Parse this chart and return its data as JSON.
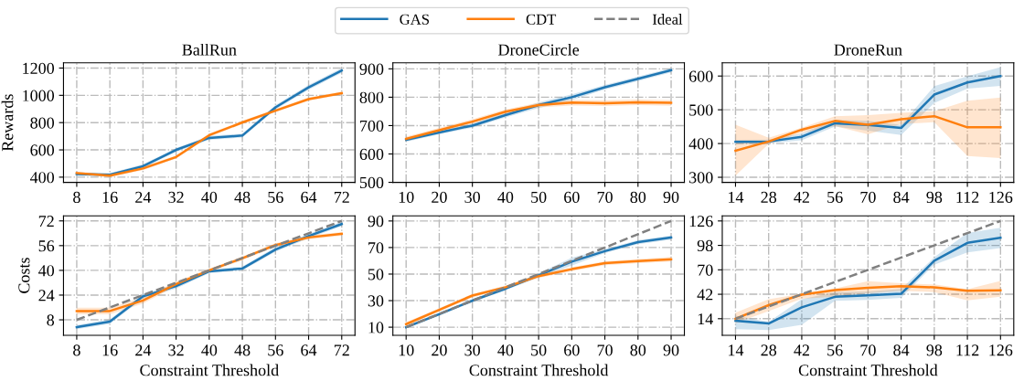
{
  "chart_data": [
    {
      "type": "line",
      "title": "BallRun",
      "ylabel": "Rewards",
      "x": [
        8,
        16,
        24,
        32,
        40,
        48,
        56,
        64,
        72
      ],
      "xlim": [
        4.8,
        75.2
      ],
      "xticks": [
        8,
        16,
        24,
        32,
        40,
        48,
        56,
        64,
        72
      ],
      "ylim": [
        362,
        1238
      ],
      "yticks": [
        400,
        600,
        800,
        1000,
        1200
      ],
      "grid": true,
      "legend": "top",
      "line_style": "solid",
      "series": [
        {
          "name": "GAS",
          "color": "#1f77b4",
          "values": [
            422,
            418,
            480,
            600,
            688,
            705,
            912,
            1058,
            1182
          ],
          "lower": [
            410,
            406,
            466,
            586,
            674,
            690,
            896,
            1040,
            1164
          ],
          "upper": [
            434,
            430,
            494,
            614,
            702,
            720,
            928,
            1076,
            1200
          ]
        },
        {
          "name": "CDT",
          "color": "#ff7f0e",
          "values": [
            430,
            411,
            464,
            548,
            708,
            801,
            888,
            972,
            1016
          ],
          "lower": [
            420,
            401,
            452,
            536,
            696,
            789,
            876,
            960,
            1004
          ],
          "upper": [
            440,
            421,
            476,
            560,
            720,
            813,
            900,
            984,
            1028
          ]
        }
      ]
    },
    {
      "type": "line",
      "title": "DroneCircle",
      "x": [
        10,
        20,
        30,
        40,
        50,
        60,
        70,
        80,
        90
      ],
      "xlim": [
        6,
        94
      ],
      "xticks": [
        10,
        20,
        30,
        40,
        50,
        60,
        70,
        80,
        90
      ],
      "ylim": [
        500,
        921
      ],
      "yticks": [
        500,
        600,
        700,
        800,
        900
      ],
      "grid": true,
      "legend": "top",
      "line_style": "solid",
      "series": [
        {
          "name": "GAS",
          "color": "#1f77b4",
          "values": [
            650,
            676,
            700,
            737,
            772,
            800,
            835,
            865,
            895
          ],
          "lower": [
            643,
            669,
            693,
            729,
            762,
            790,
            827,
            857,
            887
          ],
          "upper": [
            657,
            683,
            707,
            745,
            782,
            810,
            843,
            873,
            903
          ]
        },
        {
          "name": "CDT",
          "color": "#ff7f0e",
          "values": [
            653,
            684,
            714,
            749,
            772,
            781,
            779,
            782,
            780
          ],
          "lower": [
            645,
            676,
            706,
            741,
            764,
            771,
            769,
            772,
            770
          ],
          "upper": [
            661,
            692,
            722,
            757,
            780,
            791,
            789,
            792,
            790
          ]
        }
      ]
    },
    {
      "type": "line",
      "title": "DroneRun",
      "x": [
        14,
        28,
        42,
        56,
        70,
        84,
        98,
        112,
        126
      ],
      "xlim": [
        8.4,
        131.6
      ],
      "xticks": [
        14,
        28,
        42,
        56,
        70,
        84,
        98,
        112,
        126
      ],
      "ylim": [
        285,
        639
      ],
      "yticks": [
        300,
        400,
        500,
        600
      ],
      "grid": true,
      "legend": "top",
      "line_style": "solid",
      "series": [
        {
          "name": "GAS",
          "color": "#1f77b4",
          "values": [
            405,
            406,
            420,
            460,
            455,
            446,
            545,
            581,
            600
          ],
          "lower": [
            399,
            400,
            410,
            450,
            438,
            425,
            520,
            563,
            571
          ],
          "upper": [
            411,
            412,
            430,
            470,
            467,
            455,
            570,
            599,
            626
          ]
        },
        {
          "name": "CDT",
          "color": "#ff7f0e",
          "values": [
            379,
            406,
            441,
            467,
            456,
            472,
            481,
            448,
            448
          ],
          "lower": [
            305,
            399,
            432,
            452,
            427,
            458,
            463,
            363,
            357
          ],
          "upper": [
            456,
            417,
            447,
            481,
            484,
            491,
            496,
            527,
            536
          ]
        }
      ]
    },
    {
      "type": "line",
      "ylabel": "Costs",
      "xlabel": "Constraint Threshold",
      "x": [
        8,
        16,
        24,
        32,
        40,
        48,
        56,
        64,
        72
      ],
      "xlim": [
        4.8,
        75.2
      ],
      "xticks": [
        8,
        16,
        24,
        32,
        40,
        48,
        56,
        64,
        72
      ],
      "ylim": [
        -2,
        75.3
      ],
      "yticks": [
        8,
        24,
        40,
        56,
        72
      ],
      "grid": true,
      "legend": "top",
      "series": [
        {
          "name": "GAS",
          "color": "#1f77b4",
          "line_style": "solid",
          "values": [
            3.3,
            6.8,
            23.2,
            29.8,
            39.4,
            41.2,
            53.5,
            62.2,
            70
          ],
          "lower": [
            2,
            5.3,
            21.7,
            28.3,
            38.2,
            40,
            52,
            60.8,
            68.6
          ],
          "upper": [
            4.6,
            8.3,
            24.7,
            31.3,
            40.6,
            42.4,
            55,
            63.6,
            71.4
          ]
        },
        {
          "name": "CDT",
          "color": "#ff7f0e",
          "line_style": "solid",
          "values": [
            13.7,
            13.7,
            20.5,
            31.2,
            40,
            47.8,
            56.4,
            61.3,
            63.6
          ],
          "lower": [
            11.5,
            11.5,
            18.5,
            29.7,
            38.8,
            46.6,
            55.2,
            60.1,
            62.4
          ],
          "upper": [
            15.9,
            15.9,
            22.5,
            32.7,
            41.2,
            49,
            57.6,
            62.5,
            64.8
          ]
        },
        {
          "name": "Ideal",
          "color": "#808080",
          "line_style": "dashed",
          "values": [
            8,
            16,
            24,
            32,
            40,
            48,
            56,
            64,
            72
          ]
        }
      ]
    },
    {
      "type": "line",
      "xlabel": "Constraint Threshold",
      "x": [
        10,
        20,
        30,
        40,
        50,
        60,
        70,
        80,
        90
      ],
      "xlim": [
        6,
        94
      ],
      "xticks": [
        10,
        20,
        30,
        40,
        50,
        60,
        70,
        80,
        90
      ],
      "ylim": [
        3.9,
        93.9
      ],
      "yticks": [
        10,
        30,
        50,
        70,
        90
      ],
      "grid": true,
      "legend": "top",
      "series": [
        {
          "name": "GAS",
          "color": "#1f77b4",
          "line_style": "solid",
          "values": [
            10,
            19.8,
            30,
            39,
            49,
            59.4,
            67.3,
            74.1,
            77.5
          ],
          "lower": [
            9,
            18.6,
            28.8,
            37.8,
            47.5,
            56.4,
            65.8,
            72.6,
            76
          ],
          "upper": [
            11,
            21,
            31.2,
            40.2,
            50.5,
            62.4,
            68.8,
            75.6,
            79
          ]
        },
        {
          "name": "CDT",
          "color": "#ff7f0e",
          "line_style": "solid",
          "values": [
            12.3,
            23.1,
            33.8,
            40.1,
            48.5,
            53.7,
            58.2,
            59.8,
            61.2
          ],
          "lower": [
            11,
            21.8,
            32.5,
            38.8,
            47,
            52.2,
            56.7,
            58.3,
            59.5
          ],
          "upper": [
            13.6,
            24.4,
            35.1,
            41.4,
            50,
            55.2,
            59.7,
            61.3,
            62.9
          ]
        },
        {
          "name": "Ideal",
          "color": "#808080",
          "line_style": "dashed",
          "values": [
            10,
            20,
            30,
            40,
            50,
            60,
            70,
            80,
            90
          ]
        }
      ]
    },
    {
      "type": "line",
      "xlabel": "Constraint Threshold",
      "x": [
        14,
        28,
        42,
        56,
        70,
        84,
        98,
        112,
        126
      ],
      "xlim": [
        8.4,
        131.6
      ],
      "xticks": [
        14,
        28,
        42,
        56,
        70,
        84,
        98,
        112,
        126
      ],
      "ylim": [
        -5,
        131.9
      ],
      "yticks": [
        14,
        42,
        70,
        98,
        126
      ],
      "grid": true,
      "legend": "top",
      "series": [
        {
          "name": "GAS",
          "color": "#1f77b4",
          "line_style": "solid",
          "values": [
            11.6,
            8.5,
            27,
            39.1,
            40.8,
            42.5,
            80.4,
            100.9,
            106.7
          ],
          "lower": [
            1.9,
            1,
            7,
            34.6,
            35.6,
            37.8,
            75.9,
            89.9,
            95
          ],
          "upper": [
            17.4,
            10.5,
            36.3,
            44.3,
            45.1,
            48.1,
            84.5,
            112.3,
            118.1
          ]
        },
        {
          "name": "CDT",
          "color": "#ff7f0e",
          "line_style": "solid",
          "values": [
            14,
            29.5,
            41.6,
            46.8,
            49.5,
            51.2,
            49.9,
            46.1,
            46.4
          ],
          "lower": [
            8.8,
            22.6,
            36.9,
            39.3,
            43.2,
            46,
            44.5,
            35.1,
            39.3
          ],
          "upper": [
            20.9,
            36.4,
            42.6,
            48.5,
            56.9,
            54.6,
            53.2,
            47.9,
            57.2
          ]
        },
        {
          "name": "Ideal",
          "color": "#808080",
          "line_style": "dashed",
          "values": [
            14,
            28,
            42,
            56,
            70,
            84,
            98,
            112,
            126
          ]
        }
      ]
    }
  ]
}
